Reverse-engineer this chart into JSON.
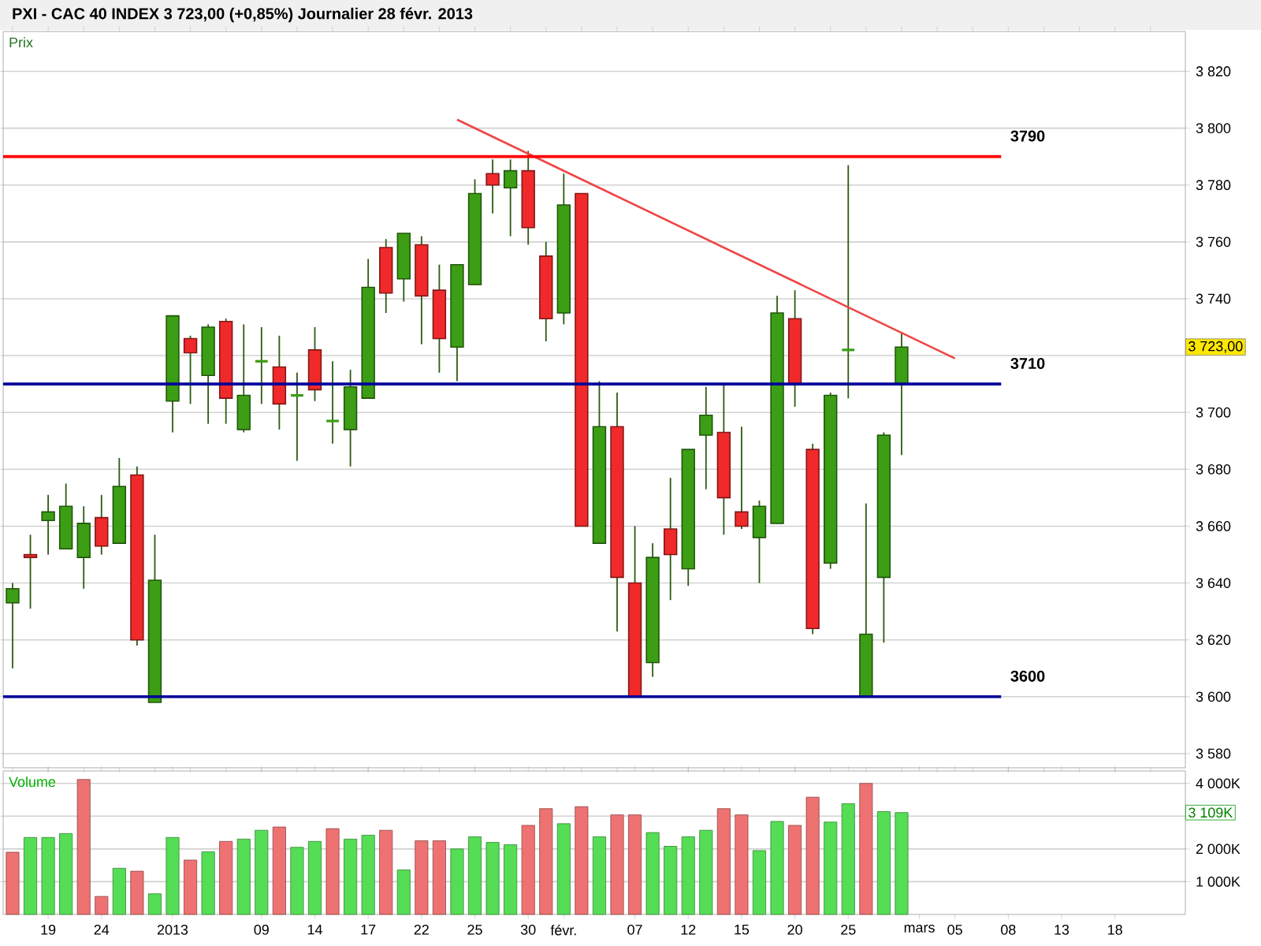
{
  "chart_data": [
    {
      "type": "candlestick",
      "title": "PXI - CAC 40 INDEX   3 723,00 (+0,85%)   Journalier  28 févr. 2013",
      "ylabel": "Prix",
      "categories": [
        null,
        null,
        null,
        null,
        null,
        null,
        null,
        null,
        null,
        null,
        null,
        null,
        null,
        null,
        null,
        null,
        null,
        null,
        null,
        null,
        null,
        null,
        null,
        null,
        null,
        null,
        null,
        null,
        null,
        null,
        null,
        null,
        null,
        null,
        null,
        null,
        null,
        null,
        null,
        null,
        null,
        null,
        null,
        null,
        null,
        null,
        null,
        null,
        null,
        null,
        null,
        null,
        null,
        null,
        null,
        null,
        null,
        null,
        null,
        null,
        null,
        null,
        null,
        null,
        null,
        null
      ],
      "ohlc": [
        [
          3633,
          3640,
          3610,
          3638
        ],
        [
          3650,
          3657,
          3631,
          3649
        ],
        [
          3662,
          3671,
          3650,
          3665
        ],
        [
          3652,
          3675,
          3652,
          3667
        ],
        [
          3649,
          3667,
          3638,
          3661
        ],
        [
          3663,
          3671,
          3650,
          3653
        ],
        [
          3654,
          3684,
          3654,
          3674
        ],
        [
          3678,
          3681,
          3618,
          3620
        ],
        [
          3598,
          3657,
          3598,
          3641
        ],
        [
          3704,
          3734,
          3693,
          3734
        ],
        [
          3726,
          3727,
          3703,
          3721
        ],
        [
          3713,
          3731,
          3696,
          3730
        ],
        [
          3732,
          3733,
          3696,
          3705
        ],
        [
          3694,
          3731,
          3693,
          3706
        ],
        [
          3718,
          3730,
          3703,
          3718
        ],
        [
          3716,
          3727,
          3694,
          3703
        ],
        [
          3706,
          3714,
          3683,
          3706
        ],
        [
          3722,
          3730,
          3704,
          3708
        ],
        [
          3697,
          3718,
          3689,
          3697
        ],
        [
          3694,
          3715,
          3681,
          3709
        ],
        [
          3705,
          3754,
          3705,
          3744
        ],
        [
          3758,
          3761,
          3735,
          3742
        ],
        [
          3747,
          3763,
          3739,
          3763
        ],
        [
          3759,
          3762,
          3724,
          3741
        ],
        [
          3743,
          3752,
          3714,
          3726
        ],
        [
          3723,
          3752,
          3711,
          3752
        ],
        [
          3745,
          3782,
          3745,
          3777
        ],
        [
          3784,
          3789,
          3770,
          3780
        ],
        [
          3779,
          3789,
          3762,
          3785
        ],
        [
          3785,
          3792,
          3759,
          3765
        ],
        [
          3755,
          3760,
          3725,
          3733
        ],
        [
          3735,
          3784,
          3731,
          3773
        ],
        [
          3777,
          3777,
          3660,
          3660
        ],
        [
          3654,
          3711,
          3654,
          3695
        ],
        [
          3695,
          3707,
          3623,
          3642
        ],
        [
          3640,
          3660,
          3600,
          3600
        ],
        [
          3612,
          3654,
          3607,
          3649
        ],
        [
          3659,
          3677,
          3634,
          3650
        ],
        [
          3645,
          3687,
          3639,
          3687
        ],
        [
          3692,
          3709,
          3673,
          3699
        ],
        [
          3693,
          3710,
          3657,
          3670
        ],
        [
          3665,
          3695,
          3659,
          3660
        ],
        [
          3656,
          3669,
          3640,
          3667
        ],
        [
          3661,
          3741,
          3661,
          3735
        ],
        [
          3733,
          3743,
          3702,
          3710
        ],
        [
          3687,
          3689,
          3622,
          3624
        ],
        [
          3647,
          3707,
          3645,
          3706
        ],
        [
          3722,
          3787,
          3705,
          3722
        ],
        [
          3600,
          3668,
          3600,
          3622
        ],
        [
          3642,
          3693,
          3619,
          3692
        ],
        [
          3710,
          3728,
          3685,
          3723
        ],
        null,
        null,
        null,
        null,
        null,
        null,
        null,
        null,
        null,
        null,
        null,
        null,
        null,
        null,
        null
      ],
      "colors": [
        "#3c9e14",
        "#f02a2a",
        "#3c9e14",
        "#3c9e14",
        "#3c9e14",
        "#f02a2a",
        "#3c9e14",
        "#f02a2a",
        "#3c9e14",
        "#3c9e14",
        "#f02a2a",
        "#3c9e14",
        "#f02a2a",
        "#3c9e14",
        "#3c9e14",
        "#f02a2a",
        "#3c9e14",
        "#f02a2a",
        "#3c9e14",
        "#3c9e14",
        "#3c9e14",
        "#f02a2a",
        "#3c9e14",
        "#f02a2a",
        "#f02a2a",
        "#3c9e14",
        "#3c9e14",
        "#f02a2a",
        "#3c9e14",
        "#f02a2a",
        "#f02a2a",
        "#3c9e14",
        "#f02a2a",
        "#3c9e14",
        "#f02a2a",
        "#f02a2a",
        "#3c9e14",
        "#f02a2a",
        "#3c9e14",
        "#3c9e14",
        "#f02a2a",
        "#f02a2a",
        "#3c9e14",
        "#3c9e14",
        "#f02a2a",
        "#f02a2a",
        "#3c9e14",
        "#3c9e14",
        "#3c9e14",
        "#3c9e14",
        "#3c9e14",
        null,
        null,
        null,
        null,
        null,
        null,
        null,
        null,
        null,
        null,
        null,
        null,
        null,
        null,
        null
      ],
      "series": [
        {
          "type": "line",
          "color": "#f04545",
          "values": [
            null,
            null,
            null,
            null,
            null,
            null,
            null,
            null,
            null,
            null,
            null,
            null,
            null,
            null,
            null,
            null,
            null,
            null,
            null,
            null,
            null,
            null,
            null,
            null,
            null,
            3803,
            null,
            null,
            null,
            null,
            null,
            null,
            null,
            null,
            null,
            null,
            null,
            null,
            null,
            null,
            null,
            null,
            null,
            null,
            null,
            null,
            null,
            null,
            null,
            null,
            null,
            null,
            null,
            3719,
            null,
            null,
            null,
            null,
            null,
            null,
            null,
            null,
            null,
            null,
            null,
            null
          ]
        }
      ],
      "ref_lines": [
        {
          "axis": "y",
          "value": 3790,
          "label": "3790",
          "color": "#ff0000"
        },
        {
          "axis": "y",
          "value": 3710,
          "label": "3710",
          "color": "#000099"
        },
        {
          "axis": "y",
          "value": 3600,
          "label": "3600",
          "color": "#000099"
        }
      ],
      "annotations": [
        "3 723,00"
      ],
      "ylim": [
        3575,
        3834
      ],
      "yticks": [
        {
          "value": 3580,
          "label": "3 580"
        },
        {
          "value": 3600,
          "label": "3 600"
        },
        {
          "value": 3620,
          "label": "3 620"
        },
        {
          "value": 3640,
          "label": "3 640"
        },
        {
          "value": 3660,
          "label": "3 660"
        },
        {
          "value": 3680,
          "label": "3 680"
        },
        {
          "value": 3700,
          "label": "3 700"
        },
        {
          "value": 3720,
          "label": null
        },
        {
          "value": 3740,
          "label": "3 740"
        },
        {
          "value": 3760,
          "label": "3 760"
        },
        {
          "value": 3780,
          "label": "3 780"
        },
        {
          "value": 3800,
          "label": "3 800"
        },
        {
          "value": 3820,
          "label": "3 820"
        }
      ],
      "grid": "y",
      "tick_labels": "y"
    },
    {
      "type": "bar",
      "ylabel": "Volume",
      "categories": [
        null,
        null,
        "19",
        null,
        null,
        "24",
        null,
        null,
        null,
        "2013",
        null,
        null,
        null,
        null,
        "09",
        null,
        null,
        "14",
        null,
        null,
        "17",
        null,
        null,
        "22",
        null,
        null,
        "25",
        null,
        null,
        "30",
        null,
        "févr.",
        null,
        null,
        null,
        "07",
        null,
        null,
        "12",
        null,
        null,
        "15",
        null,
        null,
        "20",
        null,
        null,
        "25",
        null,
        null,
        null,
        "mars",
        null,
        "05",
        null,
        null,
        "08",
        null,
        null,
        "13",
        null,
        null,
        "18",
        null,
        null,
        null
      ],
      "values": [
        1900,
        2350,
        2350,
        2470,
        4120,
        550,
        1410,
        1320,
        630,
        2350,
        1660,
        1910,
        2230,
        2300,
        2570,
        2670,
        2050,
        2230,
        2620,
        2300,
        2420,
        2570,
        1360,
        2250,
        2250,
        2000,
        2370,
        2200,
        2130,
        2720,
        3230,
        2770,
        3290,
        2370,
        3040,
        3040,
        2500,
        2080,
        2370,
        2570,
        3230,
        3040,
        1950,
        2840,
        2720,
        3580,
        2820,
        3380,
        4000,
        3140,
        3110,
        null,
        null,
        null,
        null,
        null,
        null,
        null,
        null,
        null,
        null,
        null,
        null,
        null,
        null,
        null
      ],
      "colors": [
        "#ee7272",
        "#55dd55",
        "#55dd55",
        "#55dd55",
        "#ee7272",
        "#ee7272",
        "#55dd55",
        "#ee7272",
        "#55dd55",
        "#55dd55",
        "#ee7272",
        "#55dd55",
        "#ee7272",
        "#55dd55",
        "#55dd55",
        "#ee7272",
        "#55dd55",
        "#55dd55",
        "#ee7272",
        "#55dd55",
        "#55dd55",
        "#ee7272",
        "#55dd55",
        "#ee7272",
        "#ee7272",
        "#55dd55",
        "#55dd55",
        "#55dd55",
        "#55dd55",
        "#ee7272",
        "#ee7272",
        "#55dd55",
        "#ee7272",
        "#55dd55",
        "#ee7272",
        "#ee7272",
        "#55dd55",
        "#55dd55",
        "#55dd55",
        "#55dd55",
        "#ee7272",
        "#ee7272",
        "#55dd55",
        "#55dd55",
        "#ee7272",
        "#ee7272",
        "#55dd55",
        "#55dd55",
        "#ee7272",
        "#55dd55",
        "#55dd55",
        null,
        null,
        null,
        null,
        null,
        null,
        null,
        null,
        null,
        null,
        null,
        null,
        null,
        null,
        null
      ],
      "annotations": [
        "3 109K"
      ],
      "ylim": [
        0,
        4380
      ],
      "yticks": [
        {
          "value": 1000,
          "label": "1 000K"
        },
        {
          "value": 2000,
          "label": "2 000K"
        },
        {
          "value": 3000,
          "label": null
        },
        {
          "value": 4000,
          "label": "4 000K"
        }
      ],
      "grid": "y"
    }
  ]
}
